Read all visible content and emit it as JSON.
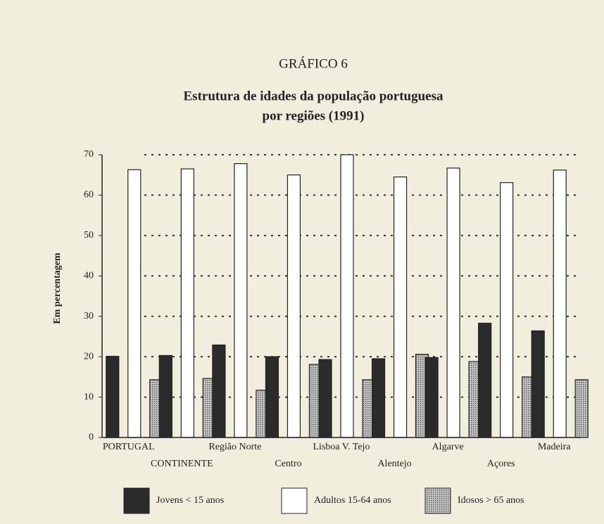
{
  "chart_data": {
    "type": "bar",
    "label": "GRÁFICO 6",
    "title": [
      "Estrutura de idades da população portuguesa",
      "por regiões (1991)"
    ],
    "y_axis_label": "Em percentagem",
    "categories": [
      "PORTUGAL",
      "CONTINENTE",
      "Região Norte",
      "Centro",
      "Lisboa V. Tejo",
      "Alentejo",
      "Algarve",
      "Açores",
      "Madeira"
    ],
    "series": [
      {
        "name": "Jovens < 15 anos",
        "color": "#2b2b2b",
        "values": [
          20.1,
          20.3,
          22.9,
          20.0,
          19.3,
          19.5,
          19.8,
          28.3,
          26.4
        ]
      },
      {
        "name": "Adultos 15-64 anos",
        "color": "#ffffff",
        "values": [
          66.3,
          66.5,
          67.8,
          65.0,
          70.0,
          64.5,
          66.7,
          63.1,
          66.2
        ]
      },
      {
        "name": "Idosos > 65 anos",
        "color": "#9a9a9a",
        "values": [
          14.3,
          14.6,
          11.7,
          18.1,
          14.3,
          20.6,
          18.8,
          15.0,
          14.3
        ]
      }
    ],
    "ylim": [
      0,
      70
    ],
    "yticks": [
      0,
      10,
      20,
      30,
      40,
      50,
      60,
      70
    ],
    "grid": true
  }
}
